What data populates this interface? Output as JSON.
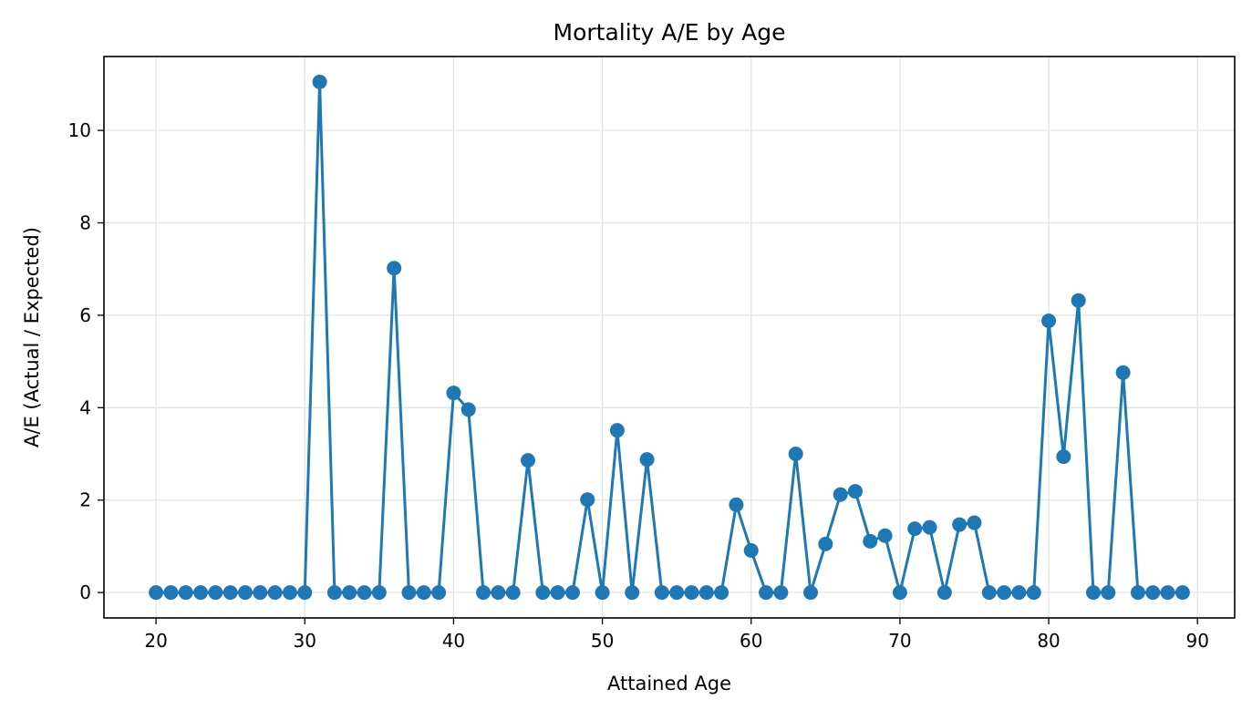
{
  "chart_data": {
    "type": "line",
    "title": "Mortality A/E by Age",
    "xlabel": "Attained Age",
    "ylabel": "A/E (Actual / Expected)",
    "xlim": [
      16.5,
      92.5
    ],
    "ylim": [
      -0.55,
      11.6
    ],
    "xticks": [
      20,
      30,
      40,
      50,
      60,
      70,
      80,
      90
    ],
    "yticks": [
      0,
      2,
      4,
      6,
      8,
      10
    ],
    "grid": true,
    "marker": "circle",
    "series": [
      {
        "color": "#1f77b4",
        "x": [
          20,
          21,
          22,
          23,
          24,
          25,
          26,
          27,
          28,
          29,
          30,
          31,
          32,
          33,
          34,
          35,
          36,
          37,
          38,
          39,
          40,
          41,
          42,
          43,
          44,
          45,
          46,
          47,
          48,
          49,
          50,
          51,
          52,
          53,
          54,
          55,
          56,
          57,
          58,
          59,
          60,
          61,
          62,
          63,
          64,
          65,
          66,
          67,
          68,
          69,
          70,
          71,
          72,
          73,
          74,
          75,
          76,
          77,
          78,
          79,
          80,
          81,
          82,
          83,
          84,
          85,
          86,
          87,
          88,
          89
        ],
        "y": [
          0,
          0,
          0,
          0,
          0,
          0,
          0,
          0,
          0,
          0,
          0,
          11.05,
          0,
          0,
          0,
          0,
          7.02,
          0,
          0,
          0,
          4.32,
          3.96,
          0,
          0,
          0,
          2.86,
          0,
          0,
          0,
          2.01,
          0,
          3.51,
          0,
          2.88,
          0,
          0,
          0,
          0,
          0,
          1.9,
          0.91,
          0,
          0,
          3.0,
          0,
          1.05,
          2.12,
          2.19,
          1.11,
          1.23,
          0,
          1.38,
          1.41,
          0,
          1.47,
          1.51,
          0,
          0,
          0,
          0,
          5.88,
          2.94,
          6.32,
          0,
          0,
          4.76,
          0,
          0,
          0,
          0
        ]
      }
    ]
  }
}
